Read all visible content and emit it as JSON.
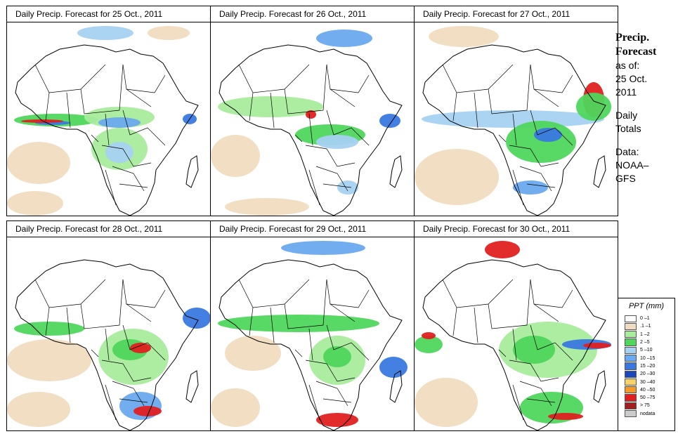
{
  "panels": [
    {
      "title": "Daily Precip. Forecast for  25 Oct., 2011",
      "variant": 0
    },
    {
      "title": "Daily Precip. Forecast for  26 Oct., 2011",
      "variant": 1
    },
    {
      "title": "Daily Precip. Forecast for  27 Oct., 2011",
      "variant": 2
    },
    {
      "title": "Daily Precip. Forecast for  28 Oct., 2011",
      "variant": 3
    },
    {
      "title": "Daily Precip. Forecast for  29 Oct., 2011",
      "variant": 4
    },
    {
      "title": "Daily Precip. Forecast for  30 Oct., 2011",
      "variant": 5
    }
  ],
  "sidebar": {
    "title_line1": "Precip.",
    "title_line2": "Forecast",
    "asof_line1": "as of:",
    "asof_line2": "25 Oct.",
    "asof_line3": "2011",
    "totals_line1": "Daily",
    "totals_line2": "Totals",
    "data_line1": "Data:",
    "data_line2": "NOAA–",
    "data_line3": "GFS"
  },
  "legend": {
    "title": "PPT (mm)",
    "items": [
      {
        "label": "0 –1",
        "color": "#ffffff"
      },
      {
        "label": ".1 –1",
        "color": "#f0dcc0"
      },
      {
        "label": "1 –2",
        "color": "#a8ec9c"
      },
      {
        "label": "2 –5",
        "color": "#4fd65c"
      },
      {
        "label": "5 –10",
        "color": "#a6d2f2"
      },
      {
        "label": "10 –15",
        "color": "#6aaaee"
      },
      {
        "label": "15 –20",
        "color": "#3a78e0"
      },
      {
        "label": "20 –30",
        "color": "#1a46c0"
      },
      {
        "label": "30 –40",
        "color": "#f5d36a"
      },
      {
        "label": "40 –50",
        "color": "#f59a24"
      },
      {
        "label": "50 –75",
        "color": "#e02020"
      },
      {
        "label": "> 75",
        "color": "#a02020"
      },
      {
        "label": "nodata",
        "color": "#cccccc"
      }
    ]
  },
  "colors": {
    "dry": "#f0dcc0",
    "light": "#a8ec9c",
    "moderate": "#4fd65c",
    "heavy_light": "#a6d2f2",
    "heavy_mid": "#6aaaee",
    "heavy_strong": "#3a78e0",
    "extreme": "#e02020",
    "outline": "#000000"
  }
}
